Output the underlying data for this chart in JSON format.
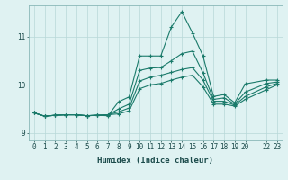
{
  "xlabel": "Humidex (Indice chaleur)",
  "background_color": "#dff2f2",
  "grid_color": "#b8d8d8",
  "line_color": "#1a7a6a",
  "xlim": [
    -0.5,
    23.5
  ],
  "ylim": [
    8.85,
    11.65
  ],
  "xticks": [
    0,
    1,
    2,
    3,
    4,
    5,
    6,
    7,
    8,
    9,
    10,
    11,
    12,
    13,
    14,
    15,
    16,
    17,
    18,
    19,
    20,
    22,
    23
  ],
  "yticks": [
    9,
    10,
    11
  ],
  "series": [
    [
      9.42,
      9.35,
      9.37,
      9.38,
      9.38,
      9.36,
      9.37,
      9.36,
      9.65,
      9.75,
      10.6,
      10.6,
      10.6,
      11.2,
      11.52,
      11.08,
      10.6,
      9.76,
      9.8,
      9.63,
      10.02,
      10.1,
      10.1
    ],
    [
      9.42,
      9.35,
      9.37,
      9.38,
      9.38,
      9.36,
      9.37,
      9.38,
      9.5,
      9.6,
      10.3,
      10.35,
      10.36,
      10.5,
      10.65,
      10.7,
      10.25,
      9.7,
      9.73,
      9.6,
      9.85,
      10.03,
      10.06
    ],
    [
      9.42,
      9.35,
      9.37,
      9.38,
      9.38,
      9.36,
      9.37,
      9.38,
      9.44,
      9.52,
      10.08,
      10.16,
      10.2,
      10.26,
      10.32,
      10.36,
      10.1,
      9.66,
      9.66,
      9.58,
      9.76,
      9.96,
      10.03
    ],
    [
      9.42,
      9.35,
      9.37,
      9.38,
      9.38,
      9.36,
      9.37,
      9.38,
      9.4,
      9.46,
      9.92,
      10.0,
      10.03,
      10.1,
      10.16,
      10.2,
      9.96,
      9.6,
      9.6,
      9.56,
      9.7,
      9.9,
      10.0
    ]
  ],
  "x_indices": [
    0,
    1,
    2,
    3,
    4,
    5,
    6,
    7,
    8,
    9,
    10,
    11,
    12,
    13,
    14,
    15,
    16,
    17,
    18,
    19,
    20,
    22,
    23
  ],
  "figsize": [
    3.2,
    2.0
  ],
  "dpi": 100
}
